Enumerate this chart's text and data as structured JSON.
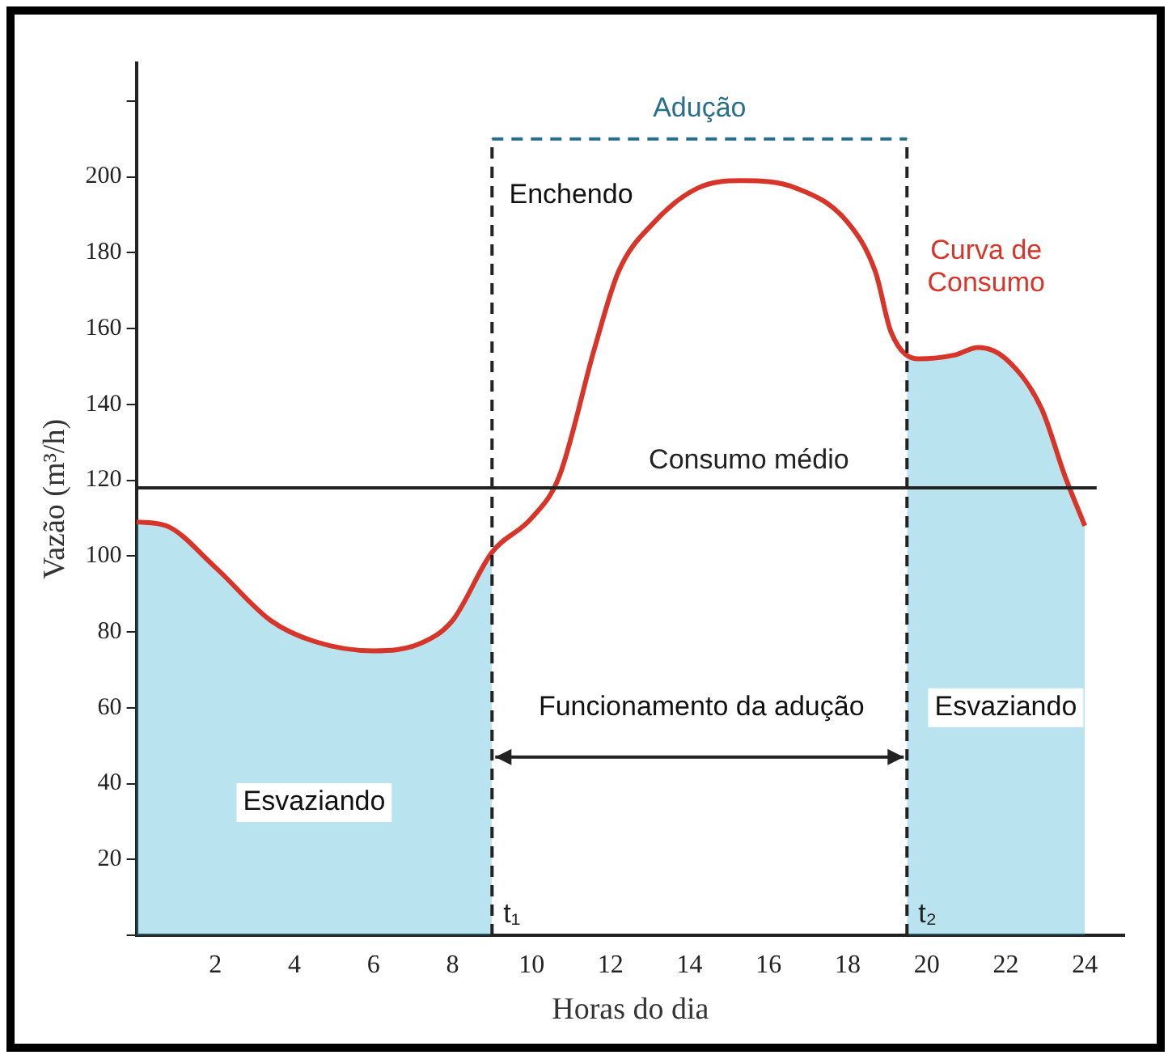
{
  "chart_data": {
    "type": "line",
    "xlabel": "Horas do dia",
    "ylabel": "Vazão (m³/h)",
    "xlim": [
      0,
      25
    ],
    "xticks": [
      {
        "value": 0,
        "label": null
      },
      2,
      4,
      6,
      8,
      10,
      12,
      14,
      16,
      18,
      20,
      22,
      24
    ],
    "ylim": [
      0,
      230
    ],
    "yticks": [
      {
        "value": 0,
        "label": null
      },
      20,
      40,
      60,
      80,
      100,
      120,
      140,
      160,
      180,
      200,
      {
        "value": 220,
        "label": null
      }
    ],
    "grid": false,
    "legend": false,
    "marker": "none",
    "series": [
      {
        "name": "Curva de Consumo",
        "color": "#d8352a",
        "x": [
          0,
          0.75,
          2,
          3.4,
          4.5,
          6,
          7.2,
          8,
          9,
          10,
          10.7,
          11.6,
          12.2,
          13.1,
          14.2,
          15.3,
          16.7,
          18,
          18.7,
          19.1,
          19.8,
          20.7,
          21.3,
          22,
          22.9,
          23.5,
          24
        ],
        "values": [
          109,
          108,
          97,
          83,
          77.5,
          75,
          77,
          83,
          101,
          110,
          121,
          155,
          175,
          188,
          197,
          199,
          197,
          188,
          175,
          159,
          152,
          153,
          155,
          152,
          139,
          121,
          108
        ]
      },
      {
        "name": "Adução",
        "color": "#2a6f8a",
        "line_style": "dashed",
        "x": [
          9,
          19.5
        ],
        "values": [
          210,
          210
        ]
      },
      {
        "type": "area",
        "color": "#2eaed0",
        "x": [
          0,
          0.75,
          2,
          3.4,
          4.5,
          6,
          7.2,
          8,
          9
        ],
        "values": [
          109,
          108,
          97,
          83,
          77.5,
          75,
          77,
          83,
          101
        ]
      },
      {
        "type": "area",
        "color": "#2eaed0",
        "x": [
          19.5,
          19.8,
          20.7,
          21.3,
          22,
          22.9,
          23.5,
          24
        ],
        "values": [
          154,
          152,
          153,
          155,
          152,
          139,
          121,
          108
        ]
      }
    ],
    "ref_lines": [
      {
        "axis": "y",
        "value": 118,
        "label": "Consumo médio",
        "color": "#222222"
      },
      {
        "axis": "x",
        "value": 9,
        "label": "t₁",
        "line_style": "dashed",
        "color": "#222222"
      },
      {
        "axis": "x",
        "value": 19.5,
        "label": "t₂",
        "line_style": "dashed",
        "color": "#222222"
      }
    ],
    "annotations": [
      "Enchendo",
      "Esvaziando",
      "Esvaziando",
      "Funcionamento da adução"
    ]
  }
}
